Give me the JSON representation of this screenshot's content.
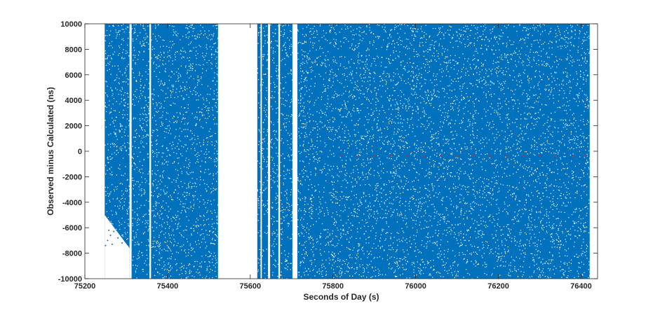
{
  "chart_data": {
    "type": "scatter",
    "title": "",
    "xlabel": "Seconds of Day (s)",
    "ylabel": "Observed minus Calculated (ns)",
    "xlim": [
      75200,
      76440
    ],
    "ylim": [
      -10000,
      10000
    ],
    "x_ticks": [
      75200,
      75400,
      75600,
      75800,
      76000,
      76200,
      76400
    ],
    "y_ticks": [
      -10000,
      -8000,
      -6000,
      -4000,
      -2000,
      0,
      2000,
      4000,
      6000,
      8000,
      10000
    ],
    "grid": false,
    "legend": "none",
    "series": [
      {
        "color": "#0072BD",
        "marker": "dot",
        "note_density": "dense uniform scatter",
        "x_segments": [
          [
            75248,
            75308
          ],
          [
            75313,
            75356
          ],
          [
            75360,
            75522
          ],
          [
            75617,
            75625
          ],
          [
            75628,
            75643
          ],
          [
            75648,
            75668
          ],
          [
            75672,
            75702
          ],
          [
            75714,
            76421
          ]
        ],
        "y_range": [
          -10000,
          10000
        ],
        "points": [
          [
            75250,
            -7400
          ],
          [
            75255,
            -7000
          ],
          [
            75262,
            -6600
          ],
          [
            75270,
            -6300
          ],
          [
            75280,
            -6800
          ],
          [
            75290,
            -7200
          ],
          [
            75300,
            -5800
          ],
          [
            75258,
            -6200
          ],
          [
            75266,
            -7300
          ],
          [
            75285,
            -6000
          ],
          [
            75296,
            -6700
          ],
          [
            75304,
            -6100
          ]
        ]
      },
      {
        "color": "#D62728",
        "marker": "dot",
        "points": [
          [
            75820,
            -380
          ],
          [
            75860,
            -410
          ],
          [
            75900,
            -400
          ],
          [
            75940,
            -360
          ],
          [
            75980,
            -390
          ],
          [
            76020,
            -420
          ],
          [
            76060,
            -380
          ],
          [
            76100,
            -400
          ],
          [
            76140,
            -370
          ],
          [
            76180,
            -410
          ],
          [
            76220,
            -400
          ],
          [
            76260,
            -390
          ],
          [
            76300,
            -380
          ],
          [
            76340,
            -410
          ],
          [
            76380,
            -400
          ],
          [
            76410,
            -390
          ]
        ]
      }
    ]
  }
}
